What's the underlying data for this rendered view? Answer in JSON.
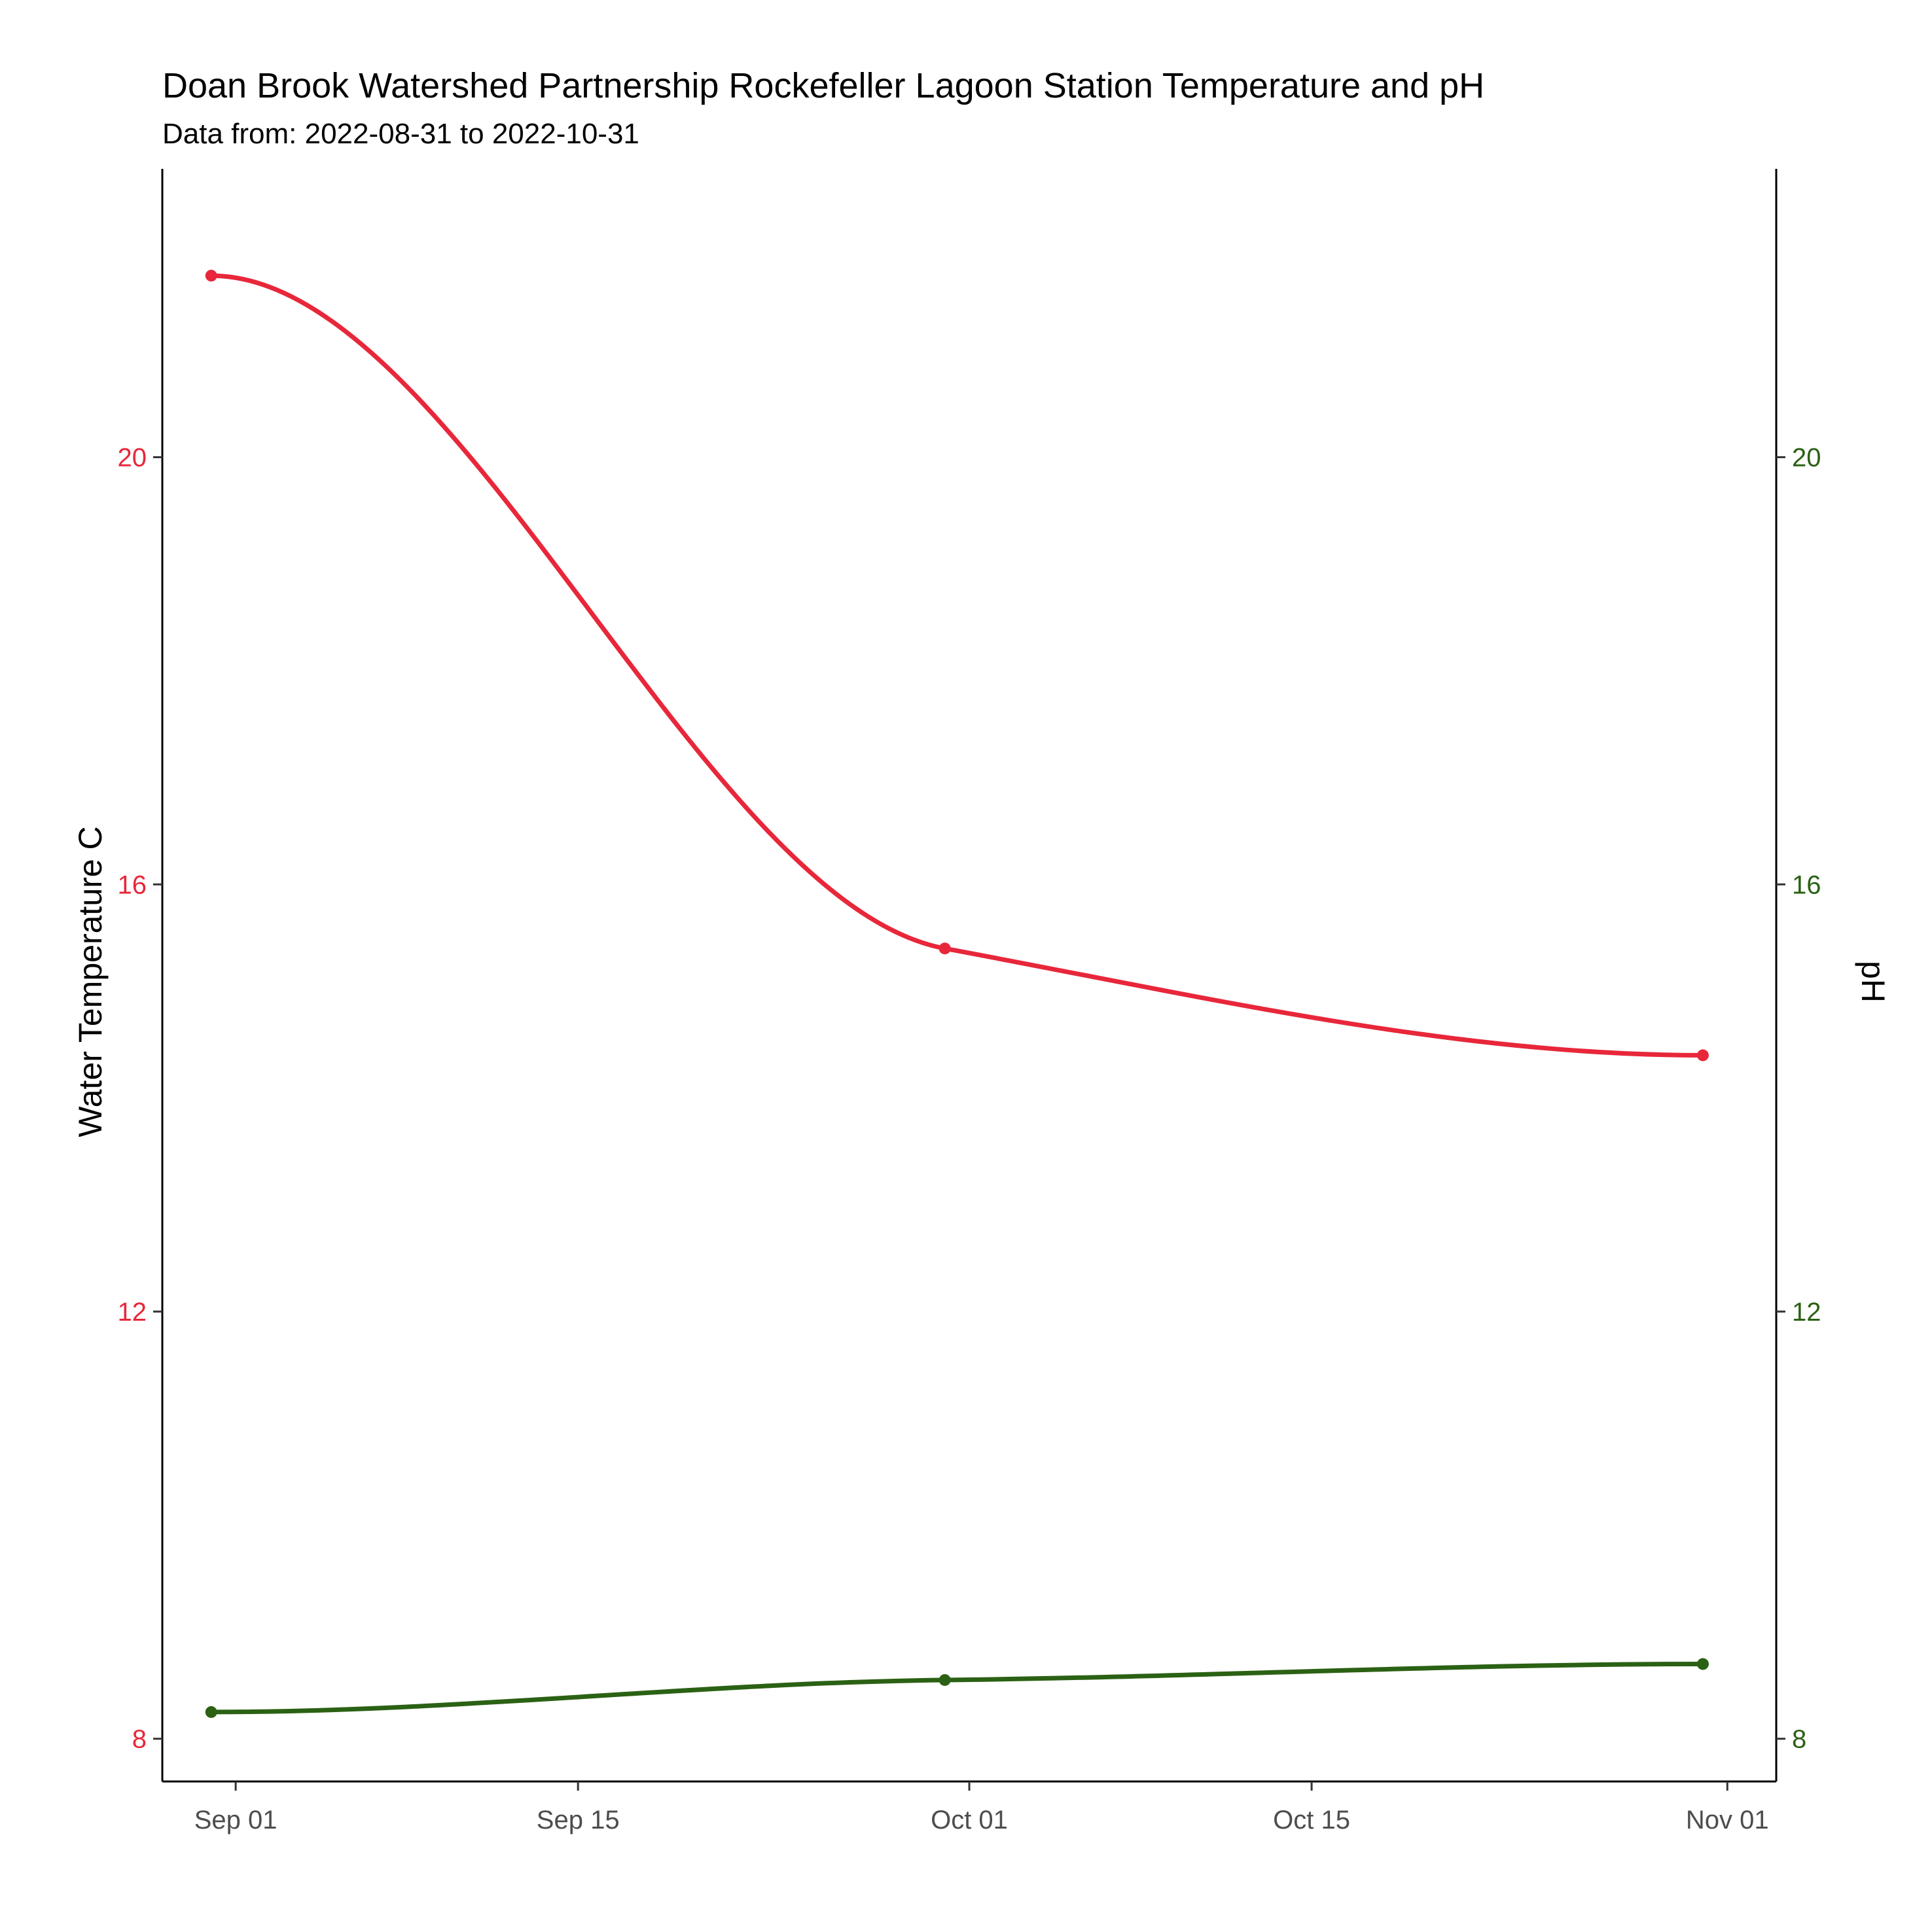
{
  "chart_data": {
    "type": "line",
    "title": "Doan Brook Watershed Partnership Rockefeller Lagoon Station Temperature and pH",
    "subtitle": "Data from: 2022-08-31 to 2022-10-31",
    "xlabel": "",
    "x_ticks": [
      "Sep 01",
      "Sep 15",
      "Oct 01",
      "Oct 15",
      "Nov 01"
    ],
    "x_tick_dates": [
      "2022-09-01",
      "2022-09-15",
      "2022-10-01",
      "2022-10-15",
      "2022-11-01"
    ],
    "xlim": [
      "2022-08-29",
      "2022-11-03"
    ],
    "y_left": {
      "label": "Water Temperature C",
      "ticks": [
        8,
        12,
        16,
        20
      ],
      "lim": [
        7.6,
        22.7
      ],
      "color": "#e8273a"
    },
    "y_right": {
      "label": "pH",
      "ticks": [
        8,
        12,
        16,
        20
      ],
      "lim": [
        7.6,
        22.7
      ],
      "color": "#2b6114"
    },
    "series": [
      {
        "axis": "left",
        "color": "#e8273a",
        "x": [
          "2022-08-31",
          "2022-09-30",
          "2022-10-31"
        ],
        "y": [
          21.7,
          15.4,
          14.4
        ]
      },
      {
        "axis": "right",
        "color": "#2b6114",
        "x": [
          "2022-08-31",
          "2022-09-30",
          "2022-10-31"
        ],
        "y": [
          8.25,
          8.55,
          8.7
        ]
      }
    ],
    "grid": false,
    "legend": "none"
  }
}
